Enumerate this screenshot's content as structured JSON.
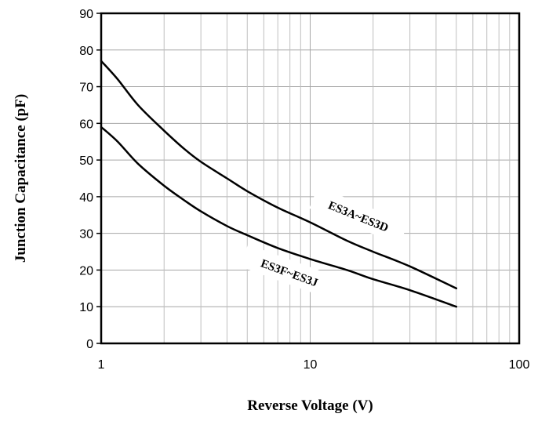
{
  "chart_data": {
    "type": "line",
    "title": "",
    "xlabel": "Reverse Voltage (V)",
    "ylabel": "Junction Capacitance (pF)",
    "x_scale": "log",
    "xlim": [
      1,
      100
    ],
    "ylim": [
      0,
      90
    ],
    "x_ticks": [
      "1",
      "10",
      "100"
    ],
    "x_tick_values": [
      1,
      10,
      100
    ],
    "y_ticks": [
      "0",
      "10",
      "20",
      "30",
      "40",
      "50",
      "60",
      "70",
      "80",
      "90"
    ],
    "y_tick_values": [
      0,
      10,
      20,
      30,
      40,
      50,
      60,
      70,
      80,
      90
    ],
    "grid": true,
    "series": [
      {
        "name": "ES3A~ES3D",
        "x": [
          1,
          1.2,
          1.5,
          2,
          2.5,
          3,
          4,
          5,
          7,
          10,
          15,
          20,
          30,
          50
        ],
        "y": [
          77,
          72,
          65,
          58,
          53,
          49.5,
          45,
          41.5,
          37,
          33,
          28,
          25,
          21,
          15
        ]
      },
      {
        "name": "ES3F~ES3J",
        "x": [
          1,
          1.2,
          1.5,
          2,
          2.5,
          3,
          4,
          5,
          7,
          10,
          15,
          20,
          30,
          50
        ],
        "y": [
          59,
          55,
          49,
          43,
          39,
          36,
          32,
          29.5,
          26,
          23,
          20,
          17.5,
          14.5,
          10
        ]
      }
    ]
  }
}
